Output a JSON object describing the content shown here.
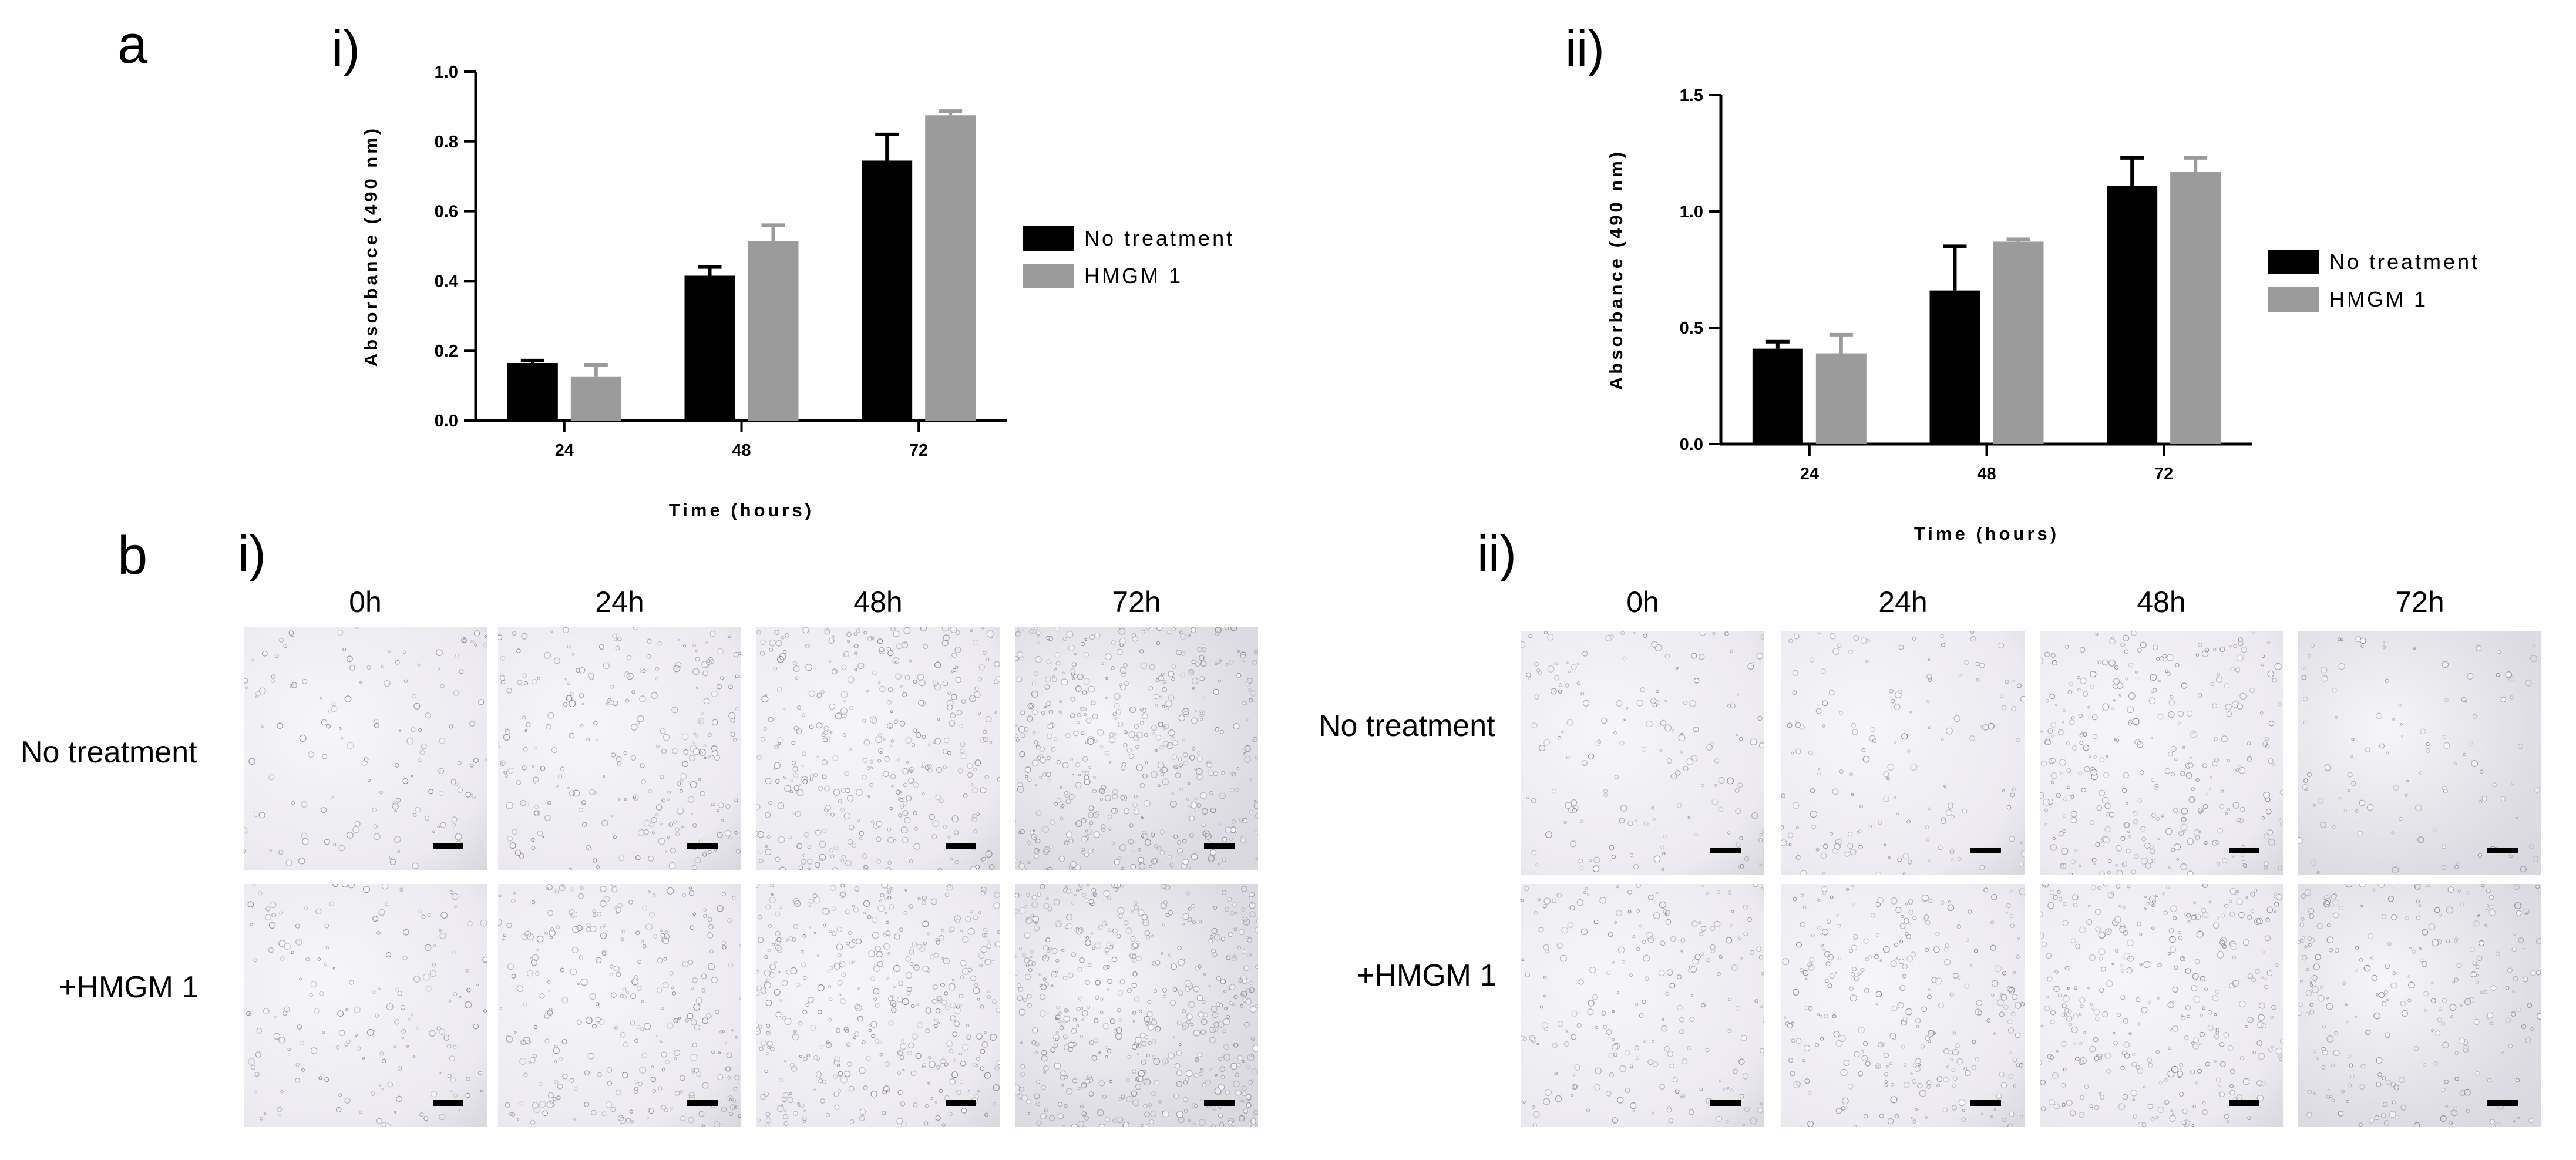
{
  "panel_labels": {
    "a": "a",
    "b": "b"
  },
  "a_sub_labels": [
    "i)",
    "ii)"
  ],
  "b_sub_labels": [
    "i)",
    "ii)"
  ],
  "chart_data": [
    {
      "type": "bar",
      "panel": "a-i",
      "xlabel": "Time (hours)",
      "ylabel": "Absorbance (490 nm)",
      "categories": [
        "24",
        "48",
        "72"
      ],
      "ylim": [
        0,
        1.0
      ],
      "yticks": [
        "0.0",
        "0.2",
        "0.4",
        "0.6",
        "0.8",
        "1.0"
      ],
      "series": [
        {
          "name": "No treatment",
          "color": "#000000",
          "values": [
            0.165,
            0.415,
            0.745
          ],
          "errors": [
            0.007,
            0.025,
            0.075
          ]
        },
        {
          "name": "HMGM 1",
          "color": "#9b9b9b",
          "values": [
            0.125,
            0.515,
            0.875
          ],
          "errors": [
            0.035,
            0.045,
            0.012
          ]
        }
      ],
      "legend": "right"
    },
    {
      "type": "bar",
      "panel": "a-ii",
      "xlabel": "Time (hours)",
      "ylabel": "Absorbance (490 nm)",
      "categories": [
        "24",
        "48",
        "72"
      ],
      "ylim": [
        0,
        1.5
      ],
      "yticks": [
        "0.0",
        "0.5",
        "1.0",
        "1.5"
      ],
      "series": [
        {
          "name": "No treatment",
          "color": "#000000",
          "values": [
            0.41,
            0.66,
            1.11
          ],
          "errors": [
            0.03,
            0.19,
            0.12
          ]
        },
        {
          "name": "HMGM 1",
          "color": "#9b9b9b",
          "values": [
            0.39,
            0.87,
            1.17
          ],
          "errors": [
            0.08,
            0.01,
            0.06
          ]
        }
      ],
      "legend": "right"
    }
  ],
  "micrographs": {
    "columns": [
      "0h",
      "24h",
      "48h",
      "72h"
    ],
    "rows": [
      "No treatment",
      "+HMGM 1"
    ]
  },
  "colors": {
    "black_bar": "#000000",
    "grey_bar": "#9b9b9b",
    "micro_bg": "#eae9ee"
  }
}
